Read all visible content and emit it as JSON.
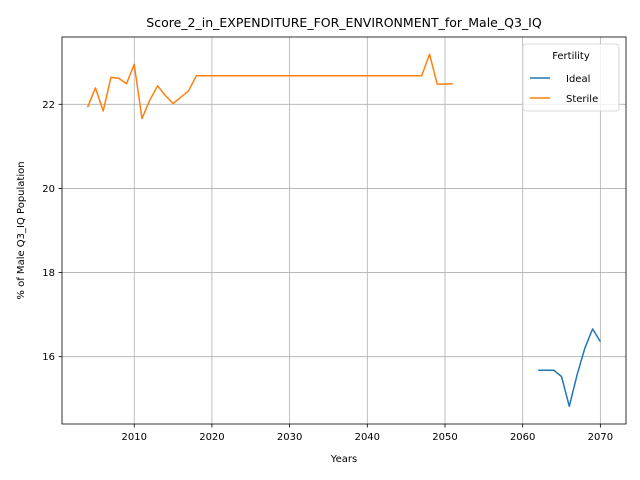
{
  "chart_data": {
    "type": "line",
    "title": "Score_2_in_EXPENDITURE_FOR_ENVIRONMENT_for_Male_Q3_IQ",
    "xlabel": "Years",
    "ylabel": "% of Male Q3_IQ Population",
    "xlim": [
      2000.7,
      2073.3
    ],
    "ylim": [
      14.4,
      23.6
    ],
    "xticks": [
      2010,
      2020,
      2030,
      2040,
      2050,
      2060,
      2070
    ],
    "yticks": [
      16,
      18,
      20,
      22
    ],
    "grid": true,
    "legend": {
      "title": "Fertility",
      "placement": "top-right"
    },
    "series": [
      {
        "name": "Ideal",
        "color": "#1f77b4",
        "x": [
          2062,
          2063,
          2064,
          2065,
          2066,
          2067,
          2068,
          2069,
          2070
        ],
        "y": [
          15.68,
          15.68,
          15.68,
          15.53,
          14.82,
          15.57,
          16.2,
          16.66,
          16.36
        ]
      },
      {
        "name": "Sterile",
        "color": "#ff7f0e",
        "x": [
          2004,
          2005,
          2006,
          2007,
          2008,
          2009,
          2010,
          2011,
          2012,
          2013,
          2014,
          2015,
          2016,
          2017,
          2018,
          2019,
          2020,
          2025,
          2030,
          2035,
          2040,
          2045,
          2047,
          2048,
          2049,
          2050,
          2051
        ],
        "y": [
          21.93,
          22.39,
          21.84,
          22.64,
          22.62,
          22.49,
          22.95,
          21.66,
          22.1,
          22.44,
          22.21,
          22.02,
          22.17,
          22.32,
          22.68,
          22.68,
          22.68,
          22.68,
          22.68,
          22.68,
          22.68,
          22.68,
          22.68,
          23.19,
          22.48,
          22.48,
          22.49
        ]
      }
    ]
  }
}
